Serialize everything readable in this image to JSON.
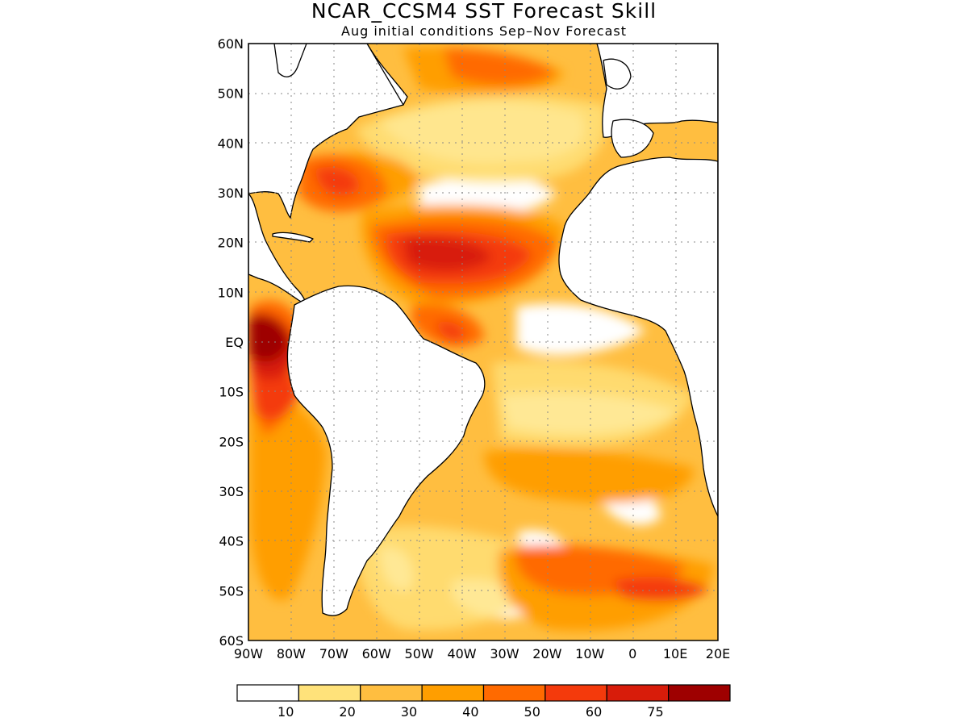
{
  "header": {
    "title": "NCAR_CCSM4 SST Forecast Skill",
    "subtitle": "Aug initial conditions  Sep–Nov Forecast"
  },
  "map": {
    "region": "Atlantic Ocean",
    "lon_range": [
      -90,
      20
    ],
    "lat_range": [
      -60,
      60
    ],
    "lat_labels": [
      "60N",
      "50N",
      "40N",
      "30N",
      "20N",
      "10N",
      "EQ",
      "10S",
      "20S",
      "30S",
      "40S",
      "50S",
      "60S"
    ],
    "lon_labels": [
      "90W",
      "80W",
      "70W",
      "60W",
      "50W",
      "40W",
      "30W",
      "20W",
      "10W",
      "0",
      "10E",
      "20E"
    ],
    "grid": "dotted",
    "land_color": "#ffffff",
    "coastline_color": "#000000"
  },
  "colorbar": {
    "tick_labels": [
      "10",
      "20",
      "30",
      "40",
      "50",
      "60",
      "75"
    ],
    "colors": [
      "#ffffff",
      "#ffe27a",
      "#ffbe40",
      "#ff9e00",
      "#ff6a00",
      "#f43a0c",
      "#d81c0a",
      "#9e0000"
    ]
  }
}
